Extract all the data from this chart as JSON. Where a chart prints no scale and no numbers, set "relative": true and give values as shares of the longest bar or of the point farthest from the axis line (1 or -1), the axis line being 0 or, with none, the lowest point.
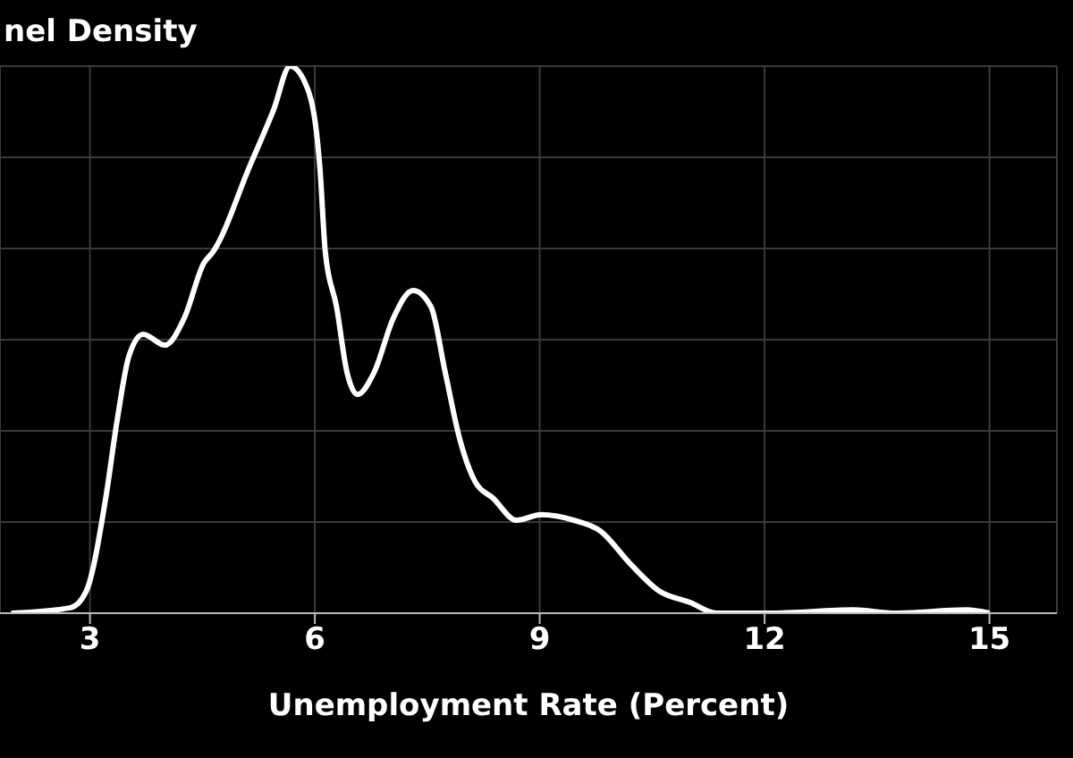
{
  "chart_data": {
    "type": "line",
    "title": "nel Density",
    "xlabel": "Unemployment Rate (Percent)",
    "relative": true,
    "grid": true,
    "marker": "none",
    "line_style": "solid",
    "xlim": [
      1.8,
      15.9
    ],
    "xticks": [
      3,
      6,
      9,
      12,
      15
    ],
    "x": [
      1.95,
      2.74,
      2.95,
      3.21,
      3.36,
      3.52,
      3.71,
      4.0,
      4.26,
      4.52,
      4.64,
      5.14,
      5.45,
      5.67,
      5.9,
      6.07,
      6.14,
      6.29,
      6.43,
      6.57,
      6.79,
      7.05,
      7.31,
      7.55,
      7.74,
      7.93,
      8.14,
      8.38,
      8.69,
      9.02,
      9.45,
      9.81,
      10.21,
      10.6,
      11.0,
      11.36,
      12.07,
      13.19,
      13.74,
      14.69,
      15.0
    ],
    "series": [
      {
        "color": "#ffffff",
        "values": [
          0,
          0.01,
          0.04,
          0.21,
          0.35,
          0.47,
          0.51,
          0.49,
          0.54,
          0.64,
          0.66,
          0.82,
          0.92,
          1.0,
          0.96,
          0.81,
          0.66,
          0.56,
          0.44,
          0.4,
          0.44,
          0.54,
          0.59,
          0.56,
          0.44,
          0.32,
          0.24,
          0.21,
          0.17,
          0.18,
          0.17,
          0.15,
          0.09,
          0.04,
          0.02,
          0,
          0,
          0.006,
          0,
          0.006,
          0
        ]
      }
    ]
  }
}
